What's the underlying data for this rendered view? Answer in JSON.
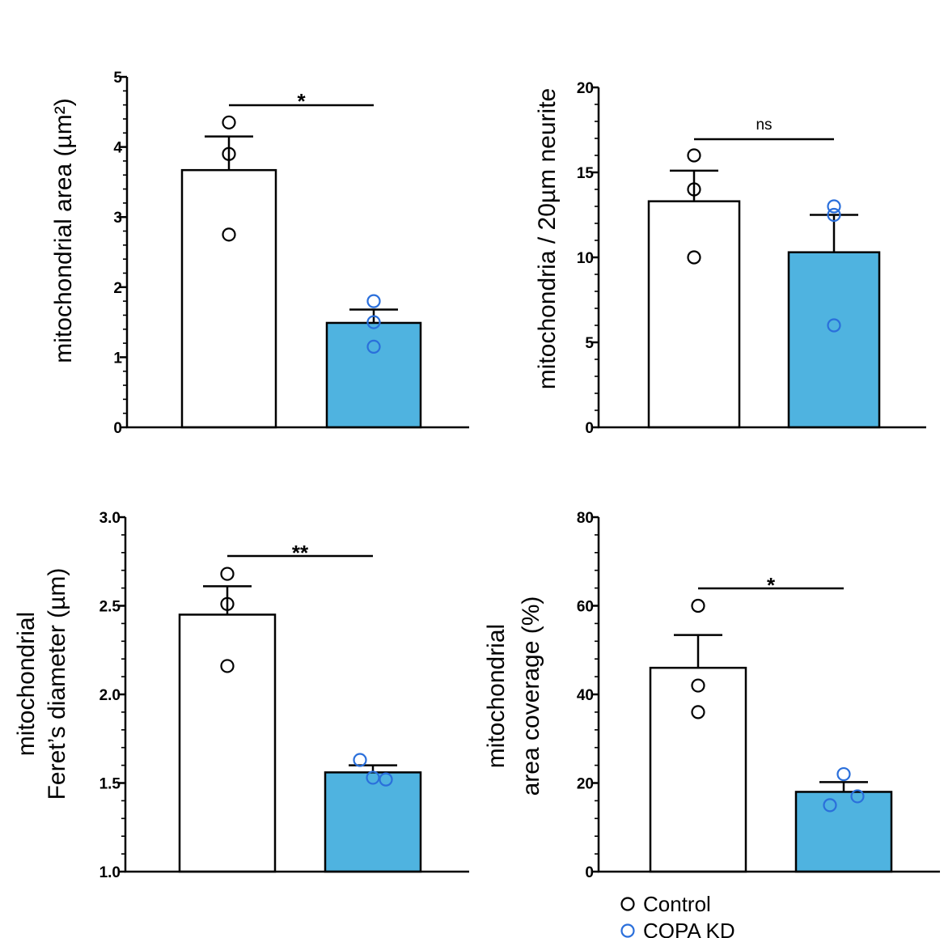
{
  "colors": {
    "control_fill": "#ffffff",
    "copa_fill": "#4fb3e0",
    "control_point": "#000000",
    "copa_point": "#2a6fdb",
    "axis": "#000000"
  },
  "legend": {
    "items": [
      {
        "label": "Control",
        "color": "#000000"
      },
      {
        "label": "COPA KD",
        "color": "#2a6fdb"
      }
    ]
  },
  "chart_data": [
    {
      "type": "bar",
      "panel": "top-left",
      "ylabel_lines": [
        "mitochondrial area (µm²)"
      ],
      "ylim": [
        0,
        5
      ],
      "ticks": [
        0,
        1,
        2,
        3,
        4,
        5
      ],
      "tick_labels": [
        "0",
        "1",
        "2",
        "3",
        "4",
        "5"
      ],
      "minor_per_major": 5,
      "categories": [
        "Control",
        "COPA KD"
      ],
      "values": [
        3.67,
        1.49
      ],
      "errors": [
        0.48,
        0.19
      ],
      "points": [
        [
          4.35,
          3.9,
          2.75
        ],
        [
          1.8,
          1.5,
          1.15
        ]
      ],
      "significance": "*"
    },
    {
      "type": "bar",
      "panel": "top-right",
      "ylabel_lines": [
        "mitochondria / 20µm neurite"
      ],
      "ylim": [
        0,
        20
      ],
      "ticks": [
        0,
        5,
        10,
        15,
        20
      ],
      "tick_labels": [
        "0",
        "5",
        "10",
        "15",
        "20"
      ],
      "minor_per_major": 5,
      "categories": [
        "Control",
        "COPA KD"
      ],
      "values": [
        13.3,
        10.3
      ],
      "errors": [
        1.8,
        2.2
      ],
      "points": [
        [
          16,
          14,
          10
        ],
        [
          13,
          12.5,
          6
        ]
      ],
      "significance": "ns"
    },
    {
      "type": "bar",
      "panel": "bottom-left",
      "ylabel_lines": [
        "mitochondrial",
        "Feret’s diameter (µm)"
      ],
      "ylim": [
        1.0,
        3.0
      ],
      "ticks": [
        1.0,
        1.5,
        2.0,
        2.5,
        3.0
      ],
      "tick_labels": [
        "1.0",
        "1.5",
        "2.0",
        "2.5",
        "3.0"
      ],
      "minor_per_major": 5,
      "categories": [
        "Control",
        "COPA KD"
      ],
      "values": [
        2.45,
        1.56
      ],
      "errors": [
        0.16,
        0.04
      ],
      "points": [
        [
          2.68,
          2.51,
          2.16
        ],
        [
          1.63,
          1.52,
          1.53
        ]
      ],
      "significance": "**"
    },
    {
      "type": "bar",
      "panel": "bottom-right",
      "ylabel_lines": [
        "mitochondrial",
        "area coverage (%)"
      ],
      "ylim": [
        0,
        80
      ],
      "ticks": [
        0,
        20,
        40,
        60,
        80
      ],
      "tick_labels": [
        "0",
        "20",
        "40",
        "60",
        "80"
      ],
      "minor_per_major": 5,
      "categories": [
        "Control",
        "COPA KD"
      ],
      "values": [
        46,
        18
      ],
      "errors": [
        7.4,
        2.2
      ],
      "points": [
        [
          60,
          42,
          36
        ],
        [
          22,
          15,
          17
        ]
      ],
      "significance": "*"
    }
  ]
}
